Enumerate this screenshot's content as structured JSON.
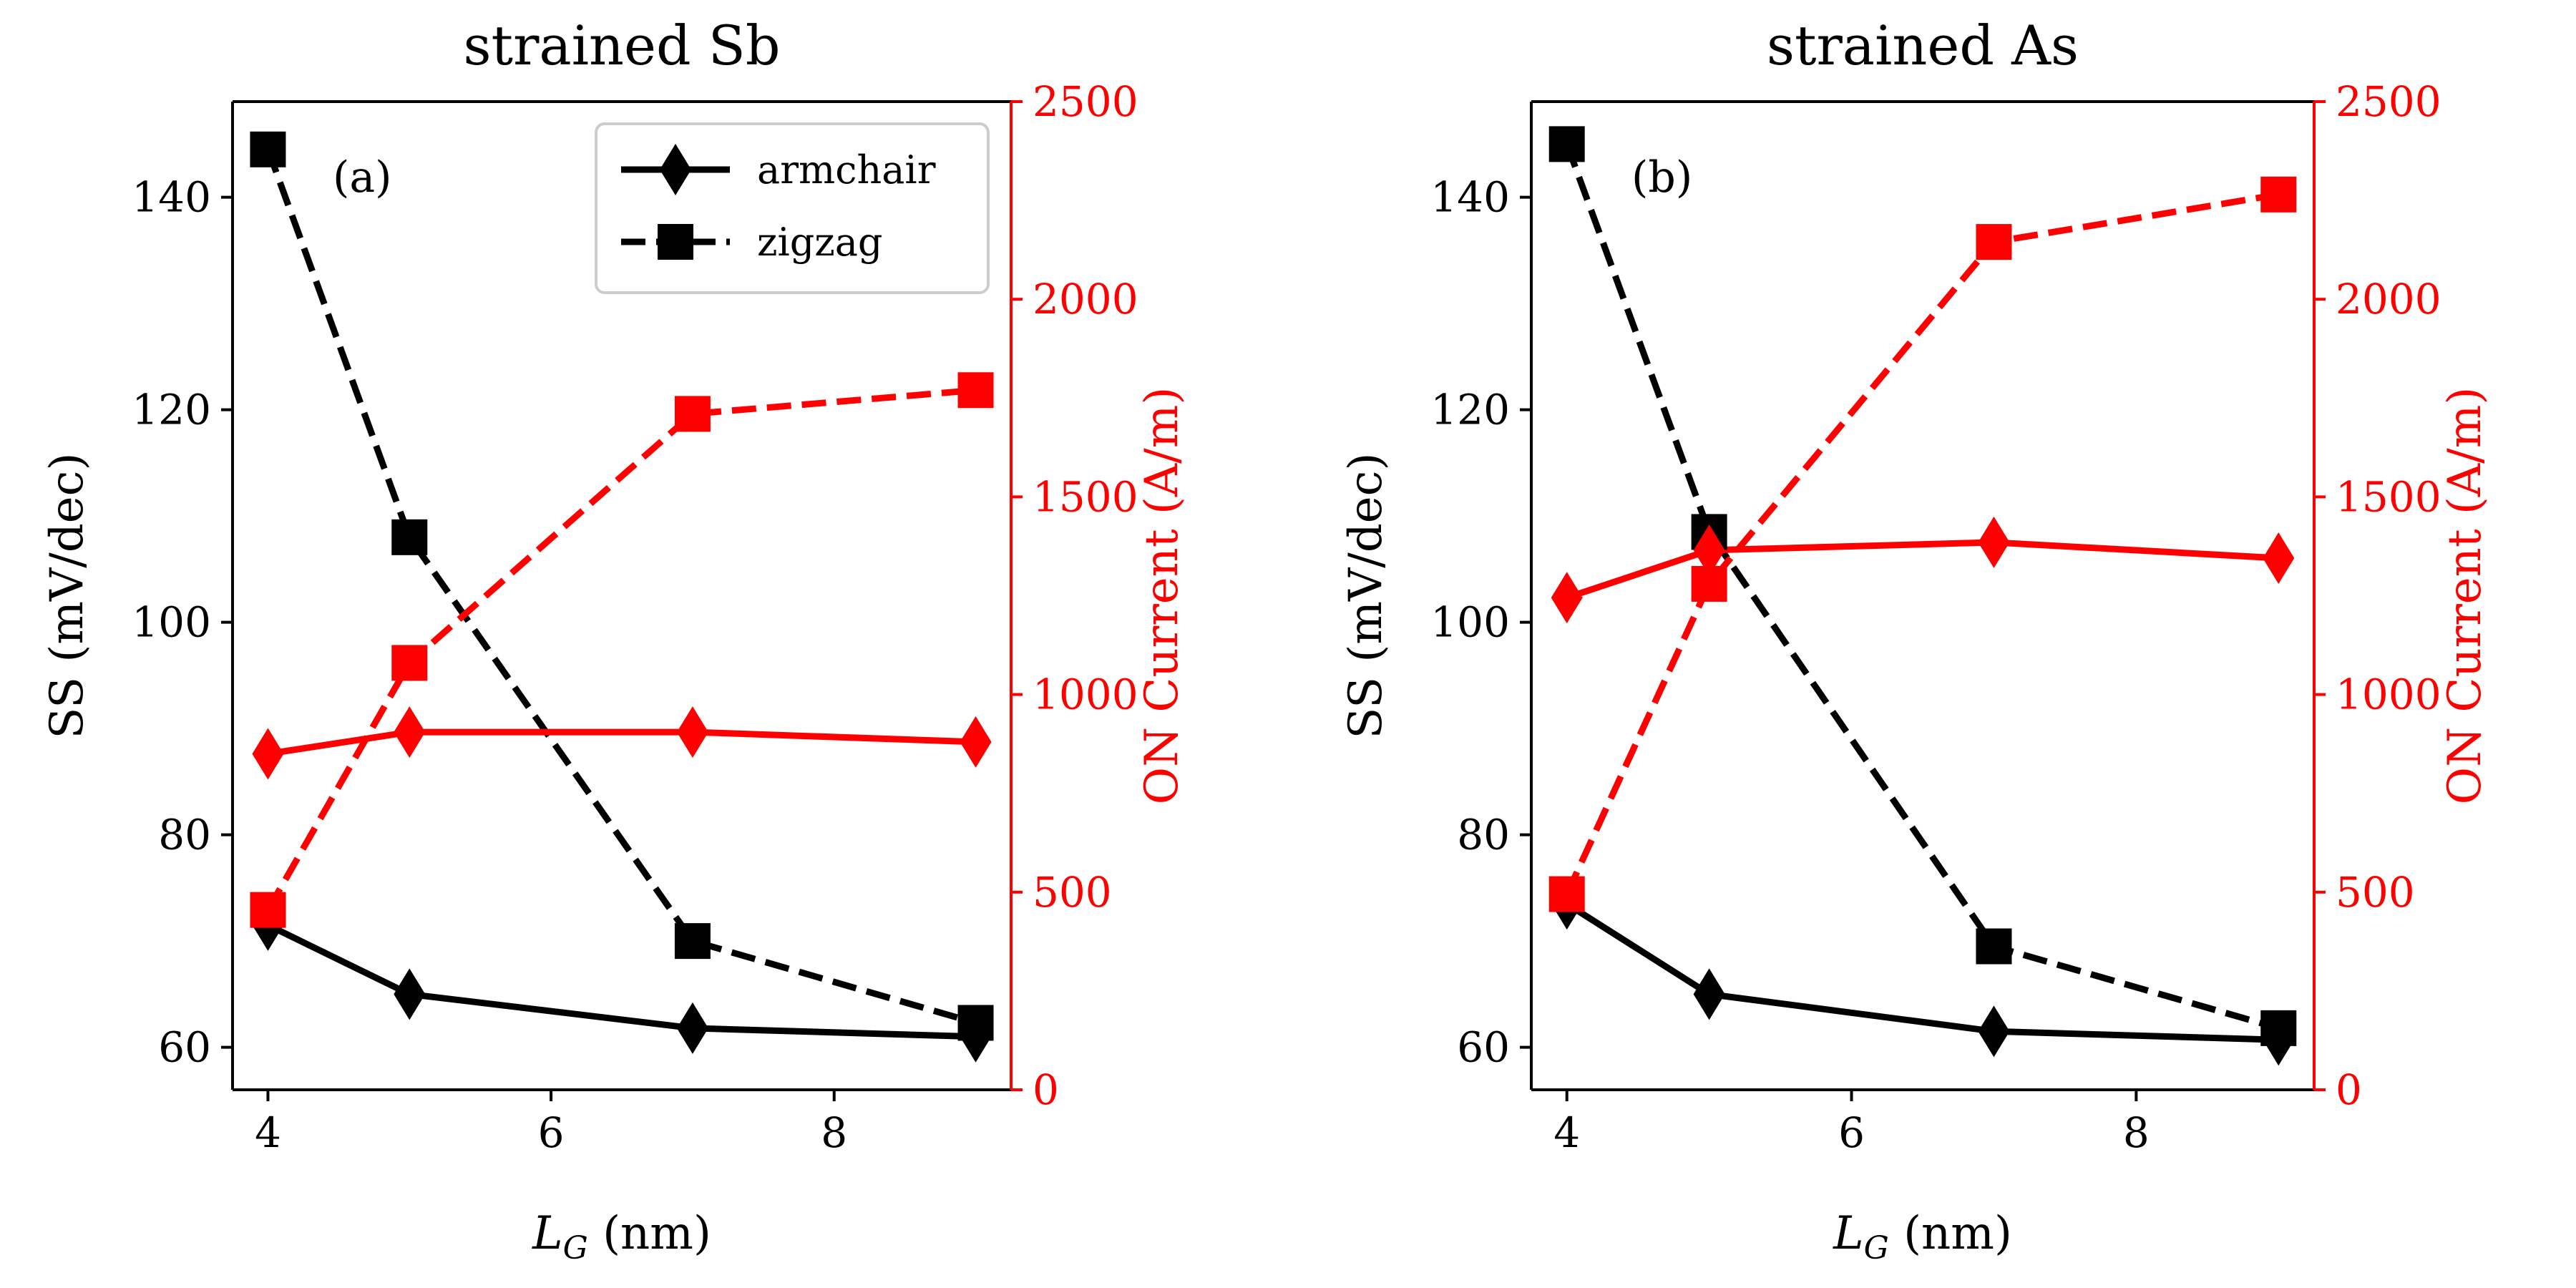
{
  "colors": {
    "ss": "#000000",
    "on_current": "#ff0000",
    "axes": "#000000",
    "legend_frame": "#cccccc"
  },
  "legend": {
    "armchair": "armchair",
    "zigzag": "zigzag",
    "placement": "upper-right of panel (a)"
  },
  "chart_data": [
    {
      "type": "line",
      "title": "strained Sb",
      "panel_label": "(a)",
      "xlabel_main": "L",
      "xlabel_sub": "G",
      "xlabel_unit": " (nm)",
      "ylabel_left": "SS (mV/dec)",
      "ylabel_right": "ON Current (A/m)",
      "x_ticks": [
        4,
        6,
        8
      ],
      "y_left_ticks": [
        60,
        80,
        100,
        120,
        140
      ],
      "y_right_ticks": [
        0,
        500,
        1000,
        1500,
        2000,
        2500
      ],
      "xlim": [
        3.75,
        9.25
      ],
      "ylim_left": [
        56,
        149
      ],
      "ylim_right": [
        0,
        2500
      ],
      "grid": false,
      "x": [
        4,
        5,
        7,
        9
      ],
      "series": [
        {
          "name": "armchair",
          "axis": "left",
          "color": "black",
          "marker": "diamond",
          "linestyle": "solid",
          "values": [
            71.5,
            65,
            61.8,
            61
          ]
        },
        {
          "name": "zigzag",
          "axis": "left",
          "color": "black",
          "marker": "square",
          "linestyle": "dashed",
          "values": [
            144.5,
            108,
            70,
            62.3
          ]
        },
        {
          "name": "armchair",
          "axis": "right",
          "color": "red",
          "marker": "diamond",
          "linestyle": "solid",
          "values": [
            850,
            905,
            905,
            880
          ]
        },
        {
          "name": "zigzag",
          "axis": "right",
          "color": "red",
          "marker": "square",
          "linestyle": "dashed",
          "values": [
            455,
            1080,
            1710,
            1770
          ]
        }
      ]
    },
    {
      "type": "line",
      "title": "strained As",
      "panel_label": "(b)",
      "xlabel_main": "L",
      "xlabel_sub": "G",
      "xlabel_unit": " (nm)",
      "ylabel_left": "SS (mV/dec)",
      "ylabel_right": "ON Current (A/m)",
      "x_ticks": [
        4,
        6,
        8
      ],
      "y_left_ticks": [
        60,
        80,
        100,
        120,
        140
      ],
      "y_right_ticks": [
        0,
        500,
        1000,
        1500,
        2000,
        2500
      ],
      "xlim": [
        3.75,
        9.25
      ],
      "ylim_left": [
        56,
        149
      ],
      "ylim_right": [
        0,
        2500
      ],
      "grid": false,
      "x": [
        4,
        5,
        7,
        9
      ],
      "series": [
        {
          "name": "armchair",
          "axis": "left",
          "color": "black",
          "marker": "diamond",
          "linestyle": "solid",
          "values": [
            73.5,
            65,
            61.5,
            60.7
          ]
        },
        {
          "name": "zigzag",
          "axis": "left",
          "color": "black",
          "marker": "square",
          "linestyle": "dashed",
          "values": [
            145,
            108.5,
            69.5,
            61.8
          ]
        },
        {
          "name": "armchair",
          "axis": "right",
          "color": "red",
          "marker": "diamond",
          "linestyle": "solid",
          "values": [
            1245,
            1365,
            1385,
            1345
          ]
        },
        {
          "name": "zigzag",
          "axis": "right",
          "color": "red",
          "marker": "square",
          "linestyle": "dashed",
          "values": [
            495,
            1280,
            2145,
            2265
          ]
        }
      ]
    }
  ]
}
